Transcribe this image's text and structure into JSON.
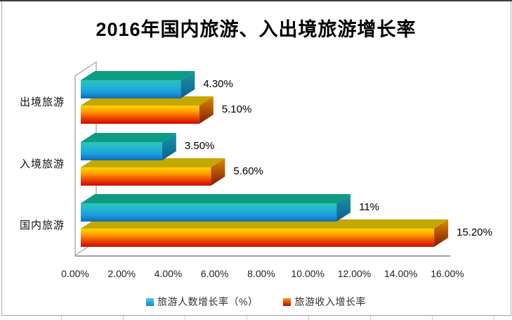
{
  "frame": {
    "background": "#FFFFFF",
    "chart_border_color": "#9B9B9B",
    "top_edge_color": "#3D3D3D",
    "worksheet_gridline_color": "#C9CEDB"
  },
  "chart_data": {
    "type": "bar",
    "orientation": "horizontal",
    "style": "3d",
    "title": "2016年国内旅游、入出境旅游增长率",
    "categories": [
      "出境旅游",
      "入境旅游",
      "国内旅游"
    ],
    "series": [
      {
        "name": "旅游人数增长率（%）",
        "values": [
          4.3,
          3.5,
          11
        ],
        "data_labels": [
          "4.30%",
          "3.50%",
          "11%"
        ],
        "colors": {
          "front_gradient": [
            "#2CC5B5",
            "#23B6CF",
            "#1A9CDF",
            "#0F6CB2"
          ],
          "top_face": "#0C9C82",
          "side_gradient": [
            "#16989E",
            "#0E5E96"
          ],
          "legend_swatch": [
            "#4CCCEC",
            "#1488C8"
          ]
        }
      },
      {
        "name": "旅游收入增长率",
        "values": [
          5.1,
          5.6,
          15.2
        ],
        "data_labels": [
          "5.10%",
          "5.60%",
          "15.20%"
        ],
        "colors": {
          "front_gradient": [
            "#FFD400",
            "#FFA000",
            "#F04800",
            "#CC0A00"
          ],
          "top_face": "#C2A800",
          "side_gradient": [
            "#D88C00",
            "#861800"
          ],
          "legend_swatch": [
            "#FF9C00",
            "#C00000"
          ]
        }
      }
    ],
    "x_axis": {
      "ticks": [
        "0.00%",
        "2.00%",
        "4.00%",
        "6.00%",
        "8.00%",
        "10.00%",
        "12.00%",
        "14.00%",
        "16.00%"
      ],
      "min": 0,
      "max": 16
    },
    "axis_line_color": "#A3A3A3",
    "wall_line_color": "#8A8A8A",
    "legend_position": "bottom",
    "grid": false
  }
}
